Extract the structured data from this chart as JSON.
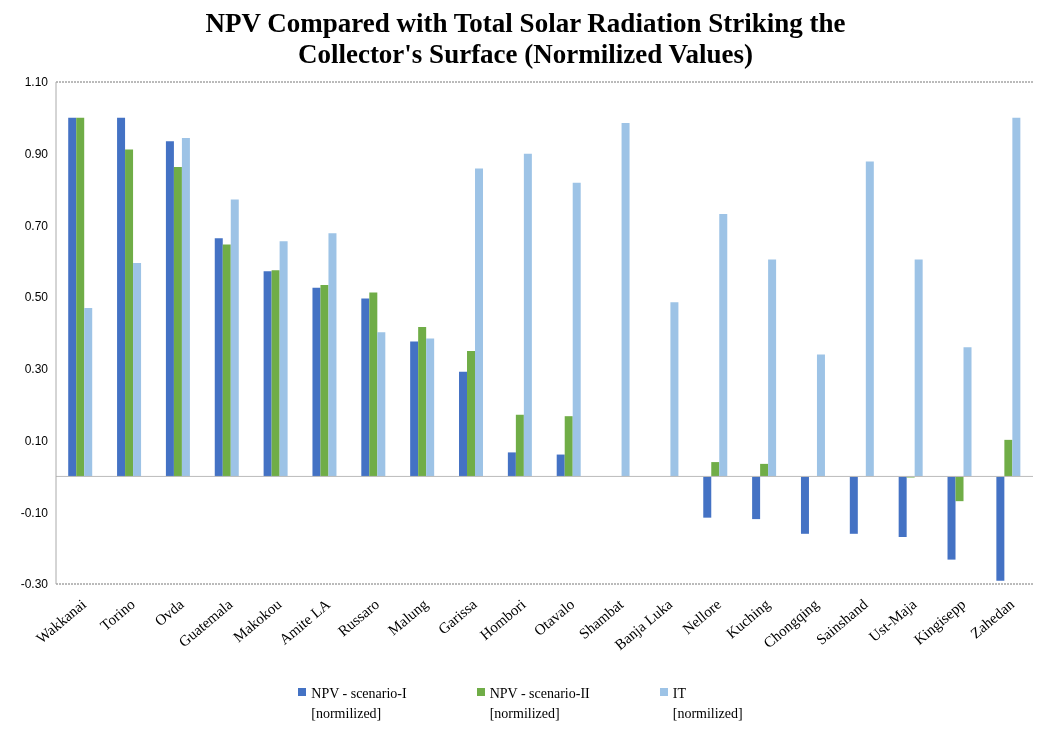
{
  "chart_data": {
    "type": "bar",
    "title": "NPV Compared with Total Solar Radiation Striking the Collector's Surface (Normilized Values)",
    "categories": [
      "Wakkanai",
      "Torino",
      "Ovda",
      "Guatemala",
      "Makokou",
      "Amite LA",
      "Russaro",
      "Malung",
      "Garissa",
      "Hombori",
      "Otavalo",
      "Shambat",
      "Banja Luka",
      "Nellore",
      "Kuching",
      "Chongqing",
      "Sainshand",
      "Ust-Maja",
      "Kingisepp",
      "Zahedan"
    ],
    "series": [
      {
        "name": "NPV - scenario-I\n[normilized]",
        "color": "#4472c4",
        "values": [
          1.0,
          1.0,
          0.935,
          0.664,
          0.572,
          0.526,
          0.496,
          0.376,
          0.292,
          0.067,
          0.061,
          0,
          0,
          -0.115,
          -0.119,
          -0.16,
          -0.16,
          -0.169,
          -0.232,
          -0.291
        ]
      },
      {
        "name": "NPV - scenario-II\n[normilized]",
        "color": "#70ad47",
        "values": [
          1.0,
          0.912,
          0.863,
          0.647,
          0.575,
          0.534,
          0.513,
          0.417,
          0.35,
          0.172,
          0.168,
          0,
          0,
          0.04,
          0.035,
          0,
          0,
          -0.003,
          -0.069,
          0.102
        ]
      },
      {
        "name": "IT\n[normilized]",
        "color": "#9dc3e6",
        "values": [
          0.47,
          0.595,
          0.944,
          0.772,
          0.656,
          0.678,
          0.402,
          0.385,
          0.859,
          0.9,
          0.819,
          0.986,
          0.486,
          0.732,
          0.605,
          0.34,
          0.878,
          0.605,
          0.36,
          1.0
        ]
      }
    ],
    "ylim": [
      -0.3,
      1.1
    ],
    "yticks": [
      {
        "value": -0.3,
        "label": "-0.30"
      },
      {
        "value": -0.1,
        "label": "-0.10"
      },
      {
        "value": 0.1,
        "label": "0.10"
      },
      {
        "value": 0.3,
        "label": "0.30"
      },
      {
        "value": 0.5,
        "label": "0.50"
      },
      {
        "value": 0.7,
        "label": "0.70"
      },
      {
        "value": 0.9,
        "label": "0.90"
      },
      {
        "value": 1.1,
        "label": "1.10"
      }
    ],
    "grid": false,
    "legend": "bottom"
  }
}
